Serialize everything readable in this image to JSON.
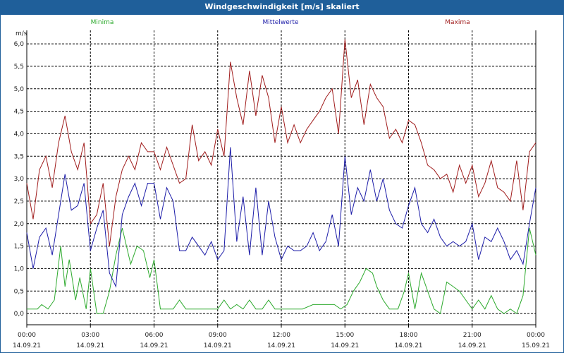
{
  "chart_data": {
    "type": "line",
    "title": "Windgeschwindigkeit [m/s] skaliert",
    "ylabel": "m/s",
    "ylim": [
      -0.25,
      6.3
    ],
    "yticks": [
      "0,0",
      "0,5",
      "1,0",
      "1,5",
      "2,0",
      "2,5",
      "3,0",
      "3,5",
      "4,0",
      "4,5",
      "5,0",
      "5,5",
      "6,0"
    ],
    "xlim": [
      0,
      24
    ],
    "xticks": [
      {
        "time": "00:00",
        "date": "14.09.21"
      },
      {
        "time": "03:00",
        "date": "14.09.21"
      },
      {
        "time": "06:00",
        "date": "14.09.21"
      },
      {
        "time": "09:00",
        "date": "14.09.21"
      },
      {
        "time": "12:00",
        "date": "14.09.21"
      },
      {
        "time": "15:00",
        "date": "14.09.21"
      },
      {
        "time": "18:00",
        "date": "14.09.21"
      },
      {
        "time": "21:00",
        "date": "14.09.21"
      },
      {
        "time": "00:00",
        "date": "15.09.21"
      }
    ],
    "grid": true,
    "legend_position": "top",
    "series": [
      {
        "name": "Minima",
        "color": "#2eaa2e",
        "x": [
          0,
          0.5,
          0.7,
          1.0,
          1.3,
          1.6,
          1.8,
          2.0,
          2.3,
          2.5,
          2.8,
          3.0,
          3.3,
          3.6,
          3.9,
          4.2,
          4.5,
          4.9,
          5.2,
          5.5,
          5.8,
          6.0,
          6.3,
          6.6,
          6.9,
          7.2,
          7.5,
          7.8,
          8.1,
          8.4,
          8.7,
          9.0,
          9.3,
          9.6,
          9.9,
          10.2,
          10.5,
          10.8,
          11.1,
          11.4,
          11.7,
          12.0,
          12.3,
          12.6,
          13.0,
          13.5,
          14.0,
          14.5,
          14.8,
          15.1,
          15.4,
          15.7,
          16.0,
          16.3,
          16.5,
          16.8,
          17.1,
          17.5,
          17.8,
          18.0,
          18.3,
          18.6,
          18.9,
          19.2,
          19.5,
          19.8,
          20.1,
          20.4,
          20.7,
          21.0,
          21.3,
          21.6,
          21.9,
          22.2,
          22.5,
          22.8,
          23.1,
          23.4,
          23.7,
          24.0
        ],
        "y": [
          0.1,
          0.1,
          0.2,
          0.1,
          0.3,
          1.5,
          0.6,
          1.2,
          0.3,
          0.8,
          0.1,
          1.0,
          0.0,
          0.0,
          0.5,
          1.3,
          1.9,
          1.1,
          1.5,
          1.4,
          0.8,
          1.2,
          0.1,
          0.1,
          0.1,
          0.3,
          0.1,
          0.1,
          0.1,
          0.1,
          0.1,
          0.1,
          0.3,
          0.1,
          0.2,
          0.1,
          0.3,
          0.1,
          0.1,
          0.3,
          0.1,
          0.1,
          0.1,
          0.1,
          0.1,
          0.2,
          0.2,
          0.2,
          0.1,
          0.2,
          0.5,
          0.7,
          1.0,
          0.9,
          0.6,
          0.3,
          0.1,
          0.1,
          0.5,
          0.9,
          0.1,
          0.9,
          0.5,
          0.1,
          0.0,
          0.7,
          0.6,
          0.5,
          0.3,
          0.1,
          0.3,
          0.1,
          0.4,
          0.1,
          0.0,
          0.1,
          0.0,
          0.4,
          1.9,
          1.3
        ]
      },
      {
        "name": "Mittelwerte",
        "color": "#1c1ca8",
        "x": [
          0,
          0.3,
          0.6,
          0.9,
          1.2,
          1.5,
          1.8,
          2.1,
          2.4,
          2.7,
          3.0,
          3.3,
          3.6,
          3.9,
          4.2,
          4.5,
          4.8,
          5.1,
          5.4,
          5.7,
          6.0,
          6.3,
          6.6,
          6.9,
          7.2,
          7.5,
          7.8,
          8.1,
          8.4,
          8.7,
          9.0,
          9.3,
          9.6,
          9.9,
          10.2,
          10.5,
          10.8,
          11.1,
          11.4,
          11.7,
          12.0,
          12.3,
          12.6,
          12.9,
          13.2,
          13.5,
          13.8,
          14.1,
          14.4,
          14.7,
          15.0,
          15.3,
          15.6,
          15.9,
          16.2,
          16.5,
          16.8,
          17.1,
          17.4,
          17.7,
          18.0,
          18.3,
          18.6,
          18.9,
          19.2,
          19.5,
          19.8,
          20.1,
          20.4,
          20.7,
          21.0,
          21.3,
          21.6,
          21.9,
          22.2,
          22.5,
          22.8,
          23.1,
          23.4,
          23.7,
          24.0
        ],
        "y": [
          1.8,
          1.0,
          1.7,
          1.9,
          1.3,
          2.2,
          3.1,
          2.3,
          2.4,
          2.9,
          1.4,
          1.9,
          2.3,
          0.9,
          0.6,
          2.2,
          2.6,
          2.9,
          2.4,
          2.9,
          2.9,
          2.1,
          2.8,
          2.5,
          1.4,
          1.4,
          1.7,
          1.5,
          1.3,
          1.6,
          1.2,
          1.4,
          3.7,
          1.6,
          2.6,
          1.3,
          2.8,
          1.3,
          2.5,
          1.7,
          1.2,
          1.5,
          1.4,
          1.4,
          1.5,
          1.8,
          1.4,
          1.6,
          2.2,
          1.5,
          3.5,
          2.2,
          2.8,
          2.5,
          3.2,
          2.5,
          3.0,
          2.3,
          2.0,
          1.9,
          2.4,
          2.8,
          2.0,
          1.8,
          2.1,
          1.7,
          1.5,
          1.6,
          1.5,
          1.6,
          2.0,
          1.2,
          1.7,
          1.6,
          1.9,
          1.6,
          1.2,
          1.4,
          1.1,
          2.0,
          2.8
        ]
      },
      {
        "name": "Maxima",
        "color": "#a01c1c",
        "x": [
          0,
          0.3,
          0.6,
          0.9,
          1.2,
          1.5,
          1.8,
          2.1,
          2.4,
          2.7,
          3.0,
          3.3,
          3.6,
          3.9,
          4.2,
          4.5,
          4.8,
          5.1,
          5.4,
          5.7,
          6.0,
          6.3,
          6.6,
          6.9,
          7.2,
          7.5,
          7.8,
          8.1,
          8.4,
          8.7,
          9.0,
          9.3,
          9.6,
          9.9,
          10.2,
          10.5,
          10.8,
          11.1,
          11.4,
          11.7,
          12.0,
          12.3,
          12.6,
          12.9,
          13.2,
          13.5,
          13.8,
          14.1,
          14.4,
          14.7,
          15.0,
          15.3,
          15.6,
          15.9,
          16.2,
          16.5,
          16.8,
          17.1,
          17.4,
          17.7,
          18.0,
          18.3,
          18.6,
          18.9,
          19.2,
          19.5,
          19.8,
          20.1,
          20.4,
          20.7,
          21.0,
          21.3,
          21.6,
          21.9,
          22.2,
          22.5,
          22.8,
          23.1,
          23.4,
          23.7,
          24.0
        ],
        "y": [
          2.9,
          2.1,
          3.2,
          3.5,
          2.8,
          3.8,
          4.4,
          3.6,
          3.2,
          3.8,
          2.0,
          2.2,
          2.9,
          1.5,
          2.6,
          3.2,
          3.5,
          3.2,
          3.8,
          3.6,
          3.6,
          3.2,
          3.7,
          3.3,
          2.9,
          3.0,
          4.2,
          3.4,
          3.6,
          3.3,
          4.1,
          3.5,
          5.6,
          4.8,
          4.2,
          5.4,
          4.4,
          5.3,
          4.8,
          3.8,
          4.6,
          3.8,
          4.2,
          3.8,
          4.1,
          4.3,
          4.5,
          4.8,
          5.0,
          4.0,
          6.1,
          4.8,
          5.2,
          4.2,
          5.1,
          4.8,
          4.6,
          3.9,
          4.1,
          3.8,
          4.3,
          4.2,
          3.8,
          3.3,
          3.2,
          3.0,
          3.1,
          2.7,
          3.3,
          2.9,
          3.3,
          2.6,
          2.9,
          3.4,
          2.8,
          2.7,
          2.5,
          3.4,
          2.3,
          3.6,
          3.8
        ]
      }
    ]
  }
}
